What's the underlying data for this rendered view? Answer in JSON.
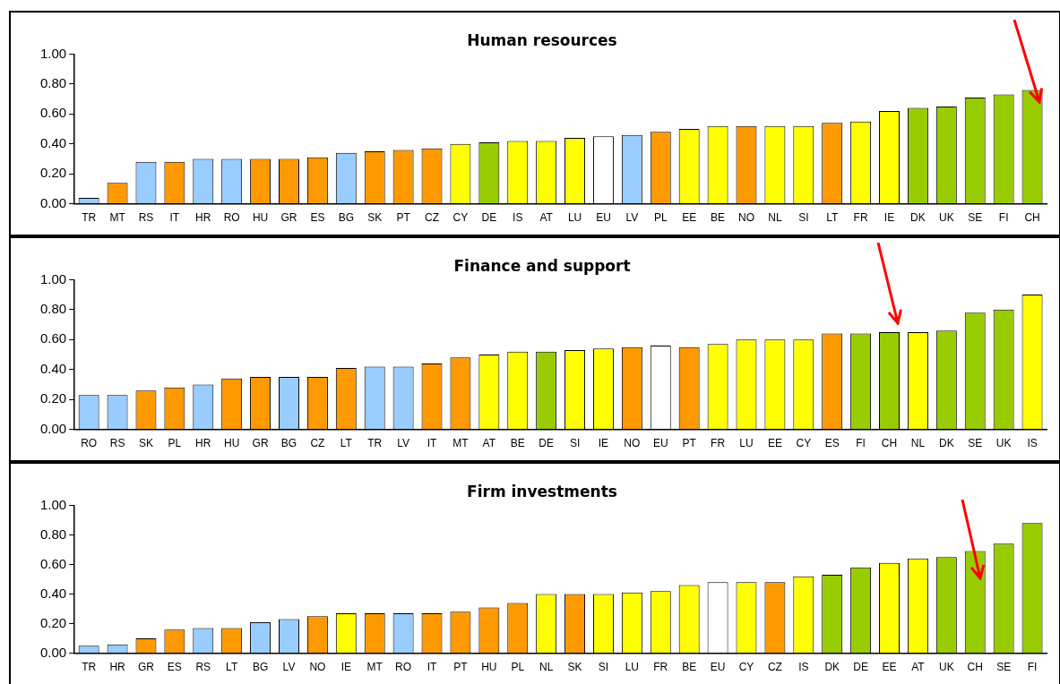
{
  "chart_data": [
    {
      "type": "bar",
      "title": "Human resources",
      "categories": [
        "TR",
        "MT",
        "RS",
        "IT",
        "HR",
        "RO",
        "HU",
        "GR",
        "ES",
        "BG",
        "SK",
        "PT",
        "CZ",
        "CY",
        "DE",
        "IS",
        "AT",
        "LU",
        "EU",
        "LV",
        "PL",
        "EE",
        "BE",
        "NO",
        "NL",
        "SI",
        "LT",
        "FR",
        "IE",
        "DK",
        "UK",
        "SE",
        "FI",
        "CH"
      ],
      "values": [
        0.04,
        0.14,
        0.28,
        0.28,
        0.3,
        0.3,
        0.3,
        0.3,
        0.31,
        0.34,
        0.35,
        0.36,
        0.37,
        0.4,
        0.41,
        0.42,
        0.42,
        0.44,
        0.45,
        0.46,
        0.48,
        0.5,
        0.52,
        0.52,
        0.52,
        0.52,
        0.54,
        0.55,
        0.62,
        0.64,
        0.65,
        0.71,
        0.73,
        0.76
      ],
      "colors": [
        "#99ccff",
        "#ff9900",
        "#99ccff",
        "#ff9900",
        "#99ccff",
        "#99ccff",
        "#ff9900",
        "#ff9900",
        "#ff9900",
        "#99ccff",
        "#ff9900",
        "#ff9900",
        "#ff9900",
        "#ffff00",
        "#99cc00",
        "#ffff00",
        "#ffff00",
        "#ffff00",
        "#ffffff",
        "#99ccff",
        "#ff9900",
        "#ffff00",
        "#ffff00",
        "#ff9900",
        "#ffff00",
        "#ffff00",
        "#ff9900",
        "#ffff00",
        "#ffff00",
        "#99cc00",
        "#99cc00",
        "#99cc00",
        "#99cc00",
        "#99cc00"
      ],
      "ylim": [
        0,
        1
      ],
      "yticks": [
        {
          "value": 0,
          "label": "0.00"
        },
        {
          "value": 0.2,
          "label": "0.20"
        },
        {
          "value": 0.4,
          "label": "0.40"
        },
        {
          "value": 0.6,
          "label": "0.60"
        },
        {
          "value": 0.8,
          "label": "0.80"
        },
        {
          "value": 1,
          "label": "1.00"
        }
      ],
      "grid": false,
      "legend": false
    },
    {
      "type": "bar",
      "title": "Finance and support",
      "categories": [
        "RO",
        "RS",
        "SK",
        "PL",
        "HR",
        "HU",
        "GR",
        "BG",
        "CZ",
        "LT",
        "TR",
        "LV",
        "IT",
        "MT",
        "AT",
        "BE",
        "DE",
        "SI",
        "IE",
        "NO",
        "EU",
        "PT",
        "FR",
        "LU",
        "EE",
        "CY",
        "ES",
        "FI",
        "CH",
        "NL",
        "DK",
        "SE",
        "UK",
        "IS"
      ],
      "values": [
        0.23,
        0.23,
        0.26,
        0.28,
        0.3,
        0.34,
        0.35,
        0.35,
        0.35,
        0.41,
        0.42,
        0.42,
        0.44,
        0.48,
        0.5,
        0.52,
        0.52,
        0.53,
        0.54,
        0.55,
        0.56,
        0.55,
        0.57,
        0.6,
        0.6,
        0.6,
        0.64,
        0.64,
        0.65,
        0.65,
        0.66,
        0.78,
        0.8,
        0.9
      ],
      "colors": [
        "#99ccff",
        "#99ccff",
        "#ff9900",
        "#ff9900",
        "#99ccff",
        "#ff9900",
        "#ff9900",
        "#99ccff",
        "#ff9900",
        "#ff9900",
        "#99ccff",
        "#99ccff",
        "#ff9900",
        "#ff9900",
        "#ffff00",
        "#ffff00",
        "#99cc00",
        "#ffff00",
        "#ffff00",
        "#ff9900",
        "#ffffff",
        "#ff9900",
        "#ffff00",
        "#ffff00",
        "#ffff00",
        "#ffff00",
        "#ff9900",
        "#99cc00",
        "#99cc00",
        "#ffff00",
        "#99cc00",
        "#99cc00",
        "#99cc00",
        "#ffff00"
      ],
      "ylim": [
        0,
        1
      ],
      "yticks": [
        {
          "value": 0,
          "label": "0.00"
        },
        {
          "value": 0.2,
          "label": "0.20"
        },
        {
          "value": 0.4,
          "label": "0.40"
        },
        {
          "value": 0.6,
          "label": "0.60"
        },
        {
          "value": 0.8,
          "label": "0.80"
        },
        {
          "value": 1,
          "label": "1.00"
        }
      ],
      "grid": false,
      "legend": false
    },
    {
      "type": "bar",
      "title": "Firm investments",
      "categories": [
        "TR",
        "HR",
        "GR",
        "ES",
        "RS",
        "LT",
        "BG",
        "LV",
        "NO",
        "IE",
        "MT",
        "RO",
        "IT",
        "PT",
        "HU",
        "PL",
        "NL",
        "SK",
        "SI",
        "LU",
        "FR",
        "BE",
        "EU",
        "CY",
        "CZ",
        "IS",
        "DK",
        "DE",
        "EE",
        "AT",
        "UK",
        "CH",
        "SE",
        "FI"
      ],
      "values": [
        0.05,
        0.06,
        0.1,
        0.16,
        0.17,
        0.17,
        0.21,
        0.23,
        0.25,
        0.27,
        0.27,
        0.27,
        0.27,
        0.28,
        0.31,
        0.34,
        0.4,
        0.4,
        0.4,
        0.41,
        0.42,
        0.46,
        0.48,
        0.48,
        0.48,
        0.52,
        0.53,
        0.58,
        0.61,
        0.64,
        0.65,
        0.69,
        0.74,
        0.88
      ],
      "colors": [
        "#99ccff",
        "#99ccff",
        "#ff9900",
        "#ff9900",
        "#99ccff",
        "#ff9900",
        "#99ccff",
        "#99ccff",
        "#ff9900",
        "#ffff00",
        "#ff9900",
        "#99ccff",
        "#ff9900",
        "#ff9900",
        "#ff9900",
        "#ff9900",
        "#ffff00",
        "#ff9900",
        "#ffff00",
        "#ffff00",
        "#ffff00",
        "#ffff00",
        "#ffffff",
        "#ffff00",
        "#ff9900",
        "#ffff00",
        "#99cc00",
        "#99cc00",
        "#ffff00",
        "#ffff00",
        "#99cc00",
        "#99cc00",
        "#99cc00",
        "#99cc00"
      ],
      "ylim": [
        0,
        1
      ],
      "yticks": [
        {
          "value": 0,
          "label": "0.00"
        },
        {
          "value": 0.2,
          "label": "0.20"
        },
        {
          "value": 0.4,
          "label": "0.40"
        },
        {
          "value": 0.6,
          "label": "0.60"
        },
        {
          "value": 0.8,
          "label": "0.80"
        },
        {
          "value": 1,
          "label": "1.00"
        }
      ],
      "grid": false,
      "legend": false
    }
  ]
}
